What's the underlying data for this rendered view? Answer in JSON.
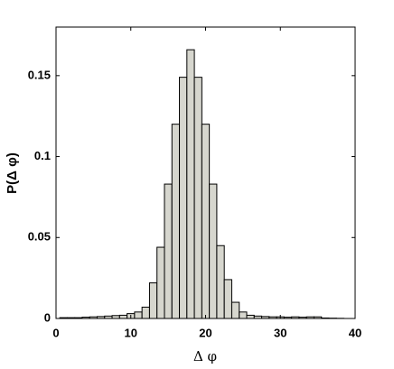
{
  "chart_data": {
    "type": "histogram",
    "xlabel": "Δ φ",
    "ylabel": "P(Δ φ)",
    "bins": [
      0.5,
      1.5,
      2.5,
      3.5,
      4.5,
      5.5,
      6.5,
      7.5,
      8.5,
      9.5,
      10.5,
      11.5,
      12.5,
      13.5,
      14.5,
      15.5,
      16.5,
      17.5,
      18.5,
      19.5,
      20.5,
      21.5,
      22.5,
      23.5,
      24.5,
      25.5,
      26.5,
      27.5,
      28.5,
      29.5,
      30.5,
      31.5,
      32.5,
      33.5,
      34.5,
      35.5,
      36.5,
      37.5,
      38.5
    ],
    "counts": [
      0.0005,
      0.0005,
      0.0005,
      0.0008,
      0.001,
      0.0012,
      0.0015,
      0.0018,
      0.002,
      0.003,
      0.004,
      0.007,
      0.022,
      0.044,
      0.083,
      0.12,
      0.149,
      0.166,
      0.149,
      0.12,
      0.083,
      0.045,
      0.024,
      0.01,
      0.004,
      0.002,
      0.0015,
      0.0012,
      0.001,
      0.001,
      0.0008,
      0.001,
      0.0008,
      0.001,
      0.001,
      0.0003,
      0.0002,
      0.0001
    ],
    "color": "#d6d6ce",
    "xlim": [
      0,
      40
    ],
    "xticks": [
      0,
      10,
      20,
      30,
      40
    ],
    "ylim": [
      0,
      0.18
    ],
    "yticks": [
      0,
      0.05,
      0.1,
      0.15
    ]
  }
}
